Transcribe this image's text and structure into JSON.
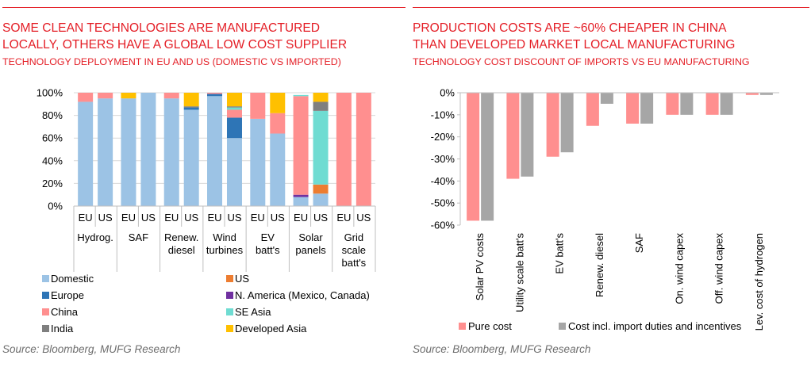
{
  "left": {
    "title_line1": "SOME CLEAN TECHNOLOGIES ARE MANUFACTURED",
    "title_line2": "LOCALLY, OTHERS HAVE A GLOBAL LOW COST SUPPLIER",
    "subtitle": "TECHNOLOGY DEPLOYMENT IN EU AND US (DOMESTIC VS IMPORTED)",
    "source": "Source: Bloomberg, MUFG Research"
  },
  "right": {
    "title_line1": "PRODUCTION COSTS ARE ~60% CHEAPER IN CHINA",
    "title_line2": "THAN DEVELOPED MARKET LOCAL MANUFACTURING",
    "subtitle": "TECHNOLOGY COST DISCOUNT OF IMPORTS VS EU MANUFACTURING",
    "source": "Source: Bloomberg, MUFG Research"
  },
  "colors": {
    "accent_red": "#e41e26",
    "Domestic": "#9cc3e5",
    "Europe": "#2e75b6",
    "China": "#ff8f8f",
    "India": "#7f7f7f",
    "US": "#ed7d31",
    "N. America (Mexico, Canada)": "#7030a0",
    "SE Asia": "#6fdcd2",
    "Developed Asia": "#ffc000",
    "Pure cost": "#ff8f8f",
    "Cost incl. import duties and incentives": "#a6a6a6"
  },
  "chart_data": [
    {
      "type": "bar",
      "stacked": true,
      "ylim": [
        0,
        100
      ],
      "yticks": [
        "0%",
        "20%",
        "40%",
        "60%",
        "80%",
        "100%"
      ],
      "grid": true,
      "legend_position": "bottom",
      "groups": [
        {
          "label": [
            "Hydrog."
          ],
          "bars": [
            {
              "x": "EU",
              "stack": {
                "Domestic": 92,
                "China": 8
              }
            },
            {
              "x": "US",
              "stack": {
                "Domestic": 95,
                "China": 5
              }
            }
          ]
        },
        {
          "label": [
            "SAF"
          ],
          "bars": [
            {
              "x": "EU",
              "stack": {
                "Domestic": 95,
                "Developed Asia": 5
              }
            },
            {
              "x": "US",
              "stack": {
                "Domestic": 100
              }
            }
          ]
        },
        {
          "label": [
            "Renew.",
            "diesel"
          ],
          "bars": [
            {
              "x": "EU",
              "stack": {
                "Domestic": 95,
                "China": 5
              }
            },
            {
              "x": "US",
              "stack": {
                "Domestic": 85,
                "Europe": 2,
                "India": 1,
                "Developed Asia": 12
              }
            }
          ]
        },
        {
          "label": [
            "Wind",
            "turbines"
          ],
          "bars": [
            {
              "x": "EU",
              "stack": {
                "Domestic": 97,
                "Europe": 2,
                "China": 1
              }
            },
            {
              "x": "US",
              "stack": {
                "Domestic": 60,
                "Europe": 18,
                "China": 7,
                "SE Asia": 2,
                "India": 1,
                "Developed Asia": 12
              }
            }
          ]
        },
        {
          "label": [
            "EV",
            "batt's"
          ],
          "bars": [
            {
              "x": "EU",
              "stack": {
                "Domestic": 77,
                "China": 23
              }
            },
            {
              "x": "US",
              "stack": {
                "Domestic": 64,
                "China": 18,
                "Developed Asia": 18
              }
            }
          ]
        },
        {
          "label": [
            "Solar",
            "panels"
          ],
          "bars": [
            {
              "x": "EU",
              "stack": {
                "Domestic": 8,
                "N. America (Mexico, Canada)": 2,
                "China": 87,
                "SE Asia": 1
              }
            },
            {
              "x": "US",
              "stack": {
                "Domestic": 11,
                "US": 8,
                "SE Asia": 65,
                "India": 8,
                "Developed Asia": 8
              }
            }
          ]
        },
        {
          "label": [
            "Grid",
            "scale",
            "batt's"
          ],
          "bars": [
            {
              "x": "EU",
              "stack": {
                "China": 100
              }
            },
            {
              "x": "US",
              "stack": {
                "China": 100
              }
            }
          ]
        }
      ],
      "legend": [
        "Domestic",
        "US",
        "Europe",
        "N. America (Mexico, Canada)",
        "China",
        "SE Asia",
        "India",
        "Developed Asia"
      ]
    },
    {
      "type": "bar",
      "ylim": [
        -60,
        0
      ],
      "yticks": [
        "0%",
        "-10%",
        "-20%",
        "-30%",
        "-40%",
        "-50%",
        "-60%"
      ],
      "grid": false,
      "legend_position": "bottom",
      "categories": [
        "Solar PV costs",
        "Utility scale batt's",
        "EV batt's",
        "Renew. diesel",
        "SAF",
        "On. wind capex",
        "Off. wind capex",
        "Lev. cost of hydrogen"
      ],
      "series": [
        {
          "name": "Pure cost",
          "values": [
            -58,
            -39,
            -29,
            -15,
            -14,
            -10,
            -10,
            -1
          ]
        },
        {
          "name": "Cost incl. import duties and incentives",
          "values": [
            -58,
            -38,
            -27,
            -5,
            -14,
            -10,
            -10,
            -1
          ]
        }
      ]
    }
  ]
}
